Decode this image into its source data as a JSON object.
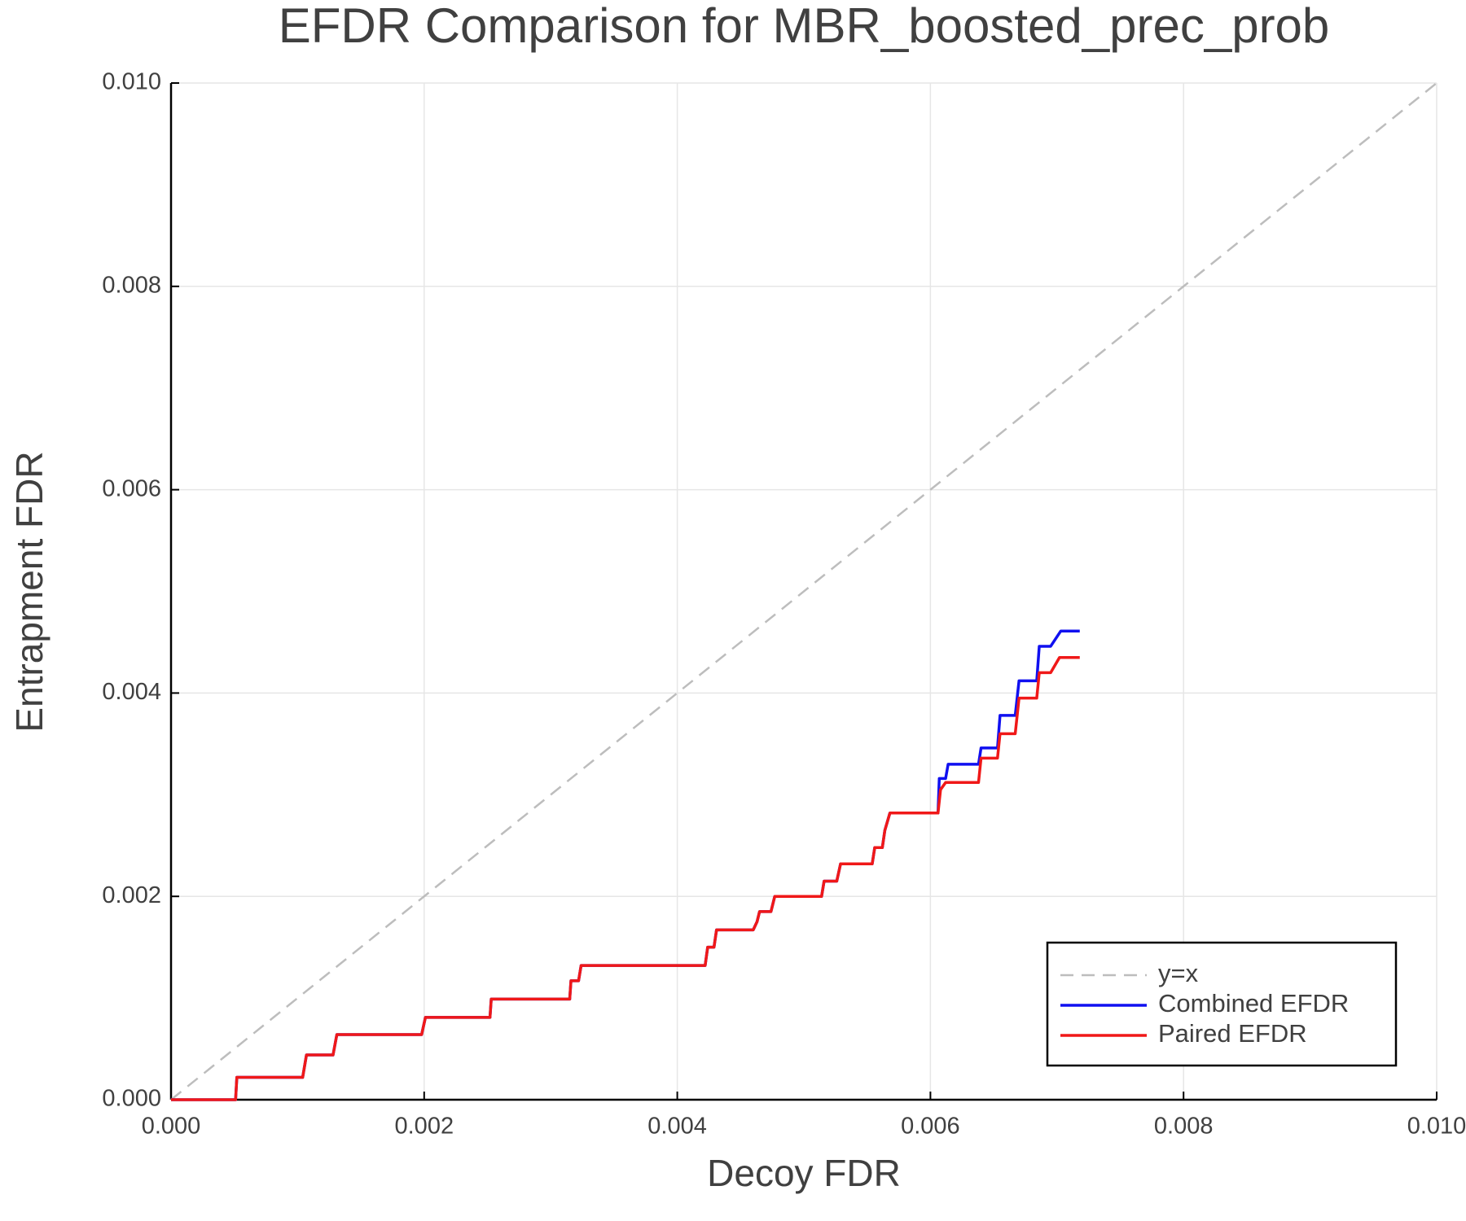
{
  "chart_data": {
    "type": "line",
    "title": "EFDR Comparison for MBR_boosted_prec_prob",
    "x_label": "Decoy FDR",
    "y_label": "Entrapment FDR",
    "xlim": [
      0,
      0.01
    ],
    "ylim": [
      0,
      0.01
    ],
    "xticks": [
      {
        "value": 0,
        "label": "0.000"
      },
      0.002,
      0.004,
      0.006,
      0.008,
      {
        "value": 0.01,
        "label": "0.010"
      }
    ],
    "yticks": [
      {
        "value": 0,
        "label": "0.000"
      },
      0.002,
      0.004,
      0.006,
      0.008,
      {
        "value": 0.01,
        "label": "0.010"
      }
    ],
    "grid": true,
    "legend": "bottom right",
    "series": [
      {
        "name": "y=x",
        "color": "#bdbdbd",
        "linestyle": "dashed",
        "x": [
          0,
          0.01
        ],
        "values": [
          0,
          0.01
        ]
      },
      {
        "name": "Combined EFDR",
        "color": "#1010f0",
        "linestyle": "solid",
        "x": [
          0,
          0.00051,
          0.00052,
          0.00104,
          0.00107,
          0.00128,
          0.00131,
          0.00198,
          0.00201,
          0.00252,
          0.00253,
          0.00315,
          0.00316,
          0.00322,
          0.00324,
          0.00422,
          0.00424,
          0.00429,
          0.00431,
          0.0046,
          0.00463,
          0.00465,
          0.00474,
          0.00477,
          0.00514,
          0.00516,
          0.00526,
          0.00529,
          0.00554,
          0.00556,
          0.00562,
          0.00564,
          0.00568,
          0.00606,
          0.00607,
          0.00612,
          0.00614,
          0.00638,
          0.0064,
          0.00653,
          0.00655,
          0.00667,
          0.0067,
          0.00684,
          0.00686,
          0.00695,
          0.00703,
          0.00718
        ],
        "values": [
          0,
          0,
          0.00022,
          0.00022,
          0.00044,
          0.00044,
          0.00064,
          0.00064,
          0.00081,
          0.00081,
          0.00099,
          0.00099,
          0.00117,
          0.00117,
          0.00132,
          0.00132,
          0.0015,
          0.0015,
          0.00167,
          0.00167,
          0.00175,
          0.00185,
          0.00185,
          0.002,
          0.002,
          0.00215,
          0.00215,
          0.00232,
          0.00232,
          0.00248,
          0.00248,
          0.00265,
          0.00282,
          0.00282,
          0.00316,
          0.00316,
          0.0033,
          0.0033,
          0.00346,
          0.00346,
          0.00378,
          0.00378,
          0.00412,
          0.00412,
          0.00446,
          0.00446,
          0.00461,
          0.00461
        ]
      },
      {
        "name": "Paired EFDR",
        "color": "#f01818",
        "linestyle": "solid",
        "x": [
          0,
          0.00051,
          0.00052,
          0.00104,
          0.00107,
          0.00128,
          0.00131,
          0.00198,
          0.00201,
          0.00252,
          0.00253,
          0.00315,
          0.00316,
          0.00322,
          0.00324,
          0.00422,
          0.00424,
          0.00429,
          0.00431,
          0.0046,
          0.00463,
          0.00465,
          0.00474,
          0.00477,
          0.00514,
          0.00516,
          0.00526,
          0.00529,
          0.00554,
          0.00556,
          0.00562,
          0.00564,
          0.00568,
          0.00606,
          0.00608,
          0.00612,
          0.00638,
          0.0064,
          0.00653,
          0.00655,
          0.00667,
          0.0067,
          0.00684,
          0.00686,
          0.00695,
          0.00702,
          0.00718
        ],
        "values": [
          0,
          0,
          0.00022,
          0.00022,
          0.00044,
          0.00044,
          0.00064,
          0.00064,
          0.00081,
          0.00081,
          0.00099,
          0.00099,
          0.00117,
          0.00117,
          0.00132,
          0.00132,
          0.0015,
          0.0015,
          0.00167,
          0.00167,
          0.00175,
          0.00185,
          0.00185,
          0.002,
          0.002,
          0.00215,
          0.00215,
          0.00232,
          0.00232,
          0.00248,
          0.00248,
          0.00265,
          0.00282,
          0.00282,
          0.00305,
          0.00312,
          0.00312,
          0.00336,
          0.00336,
          0.0036,
          0.0036,
          0.00395,
          0.00395,
          0.0042,
          0.0042,
          0.00435,
          0.00435
        ]
      }
    ]
  }
}
